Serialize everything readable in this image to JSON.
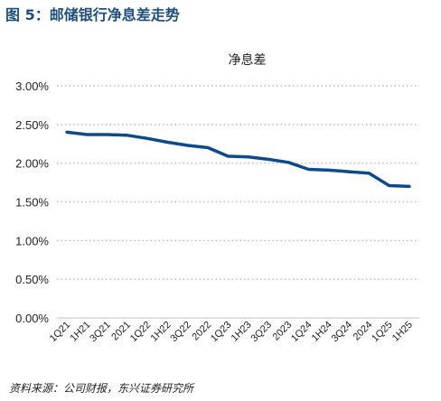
{
  "figure": {
    "title": "图 5：邮储银行净息差走势",
    "source": "资料来源：公司财报，东兴证券研究所"
  },
  "colors": {
    "title": "#1f4e79",
    "line": "#0e4a8a",
    "grid": "#bdbdbd",
    "text": "#222222"
  },
  "chart_data": {
    "type": "line",
    "title": "净息差",
    "xlabel": "",
    "ylabel": "",
    "ylim": [
      0,
      3.0
    ],
    "yticks": [
      "0.00%",
      "0.50%",
      "1.00%",
      "1.50%",
      "2.00%",
      "2.50%",
      "3.00%"
    ],
    "grid": "horizontal dotted",
    "legend": "none",
    "categories": [
      "1Q21",
      "1H21",
      "3Q21",
      "2021",
      "1Q22",
      "1H22",
      "3Q22",
      "2022",
      "1Q23",
      "1H23",
      "3Q23",
      "2023",
      "1Q24",
      "1H24",
      "3Q24",
      "2024",
      "1Q25",
      "1H25"
    ],
    "series": [
      {
        "values": [
          2.4,
          2.37,
          2.37,
          2.36,
          2.32,
          2.27,
          2.23,
          2.2,
          2.09,
          2.08,
          2.05,
          2.01,
          1.92,
          1.91,
          1.89,
          1.87,
          1.71,
          1.7
        ]
      }
    ]
  }
}
